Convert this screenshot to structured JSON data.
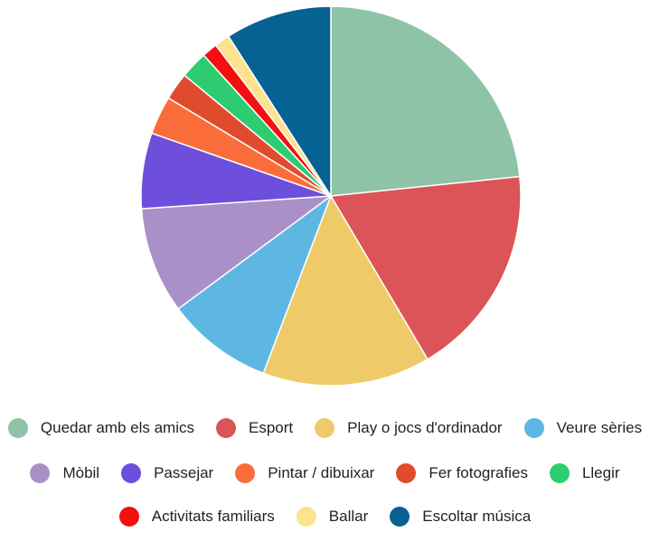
{
  "chart_data": {
    "type": "pie",
    "title": "",
    "slices": [
      {
        "label": "Quedar amb els amics",
        "value": 25.0,
        "color": "#8fc3a8"
      },
      {
        "label": "Esport",
        "value": 19.4,
        "color": "#dc5457"
      },
      {
        "label": "Play o jocs d'ordinador",
        "value": 15.3,
        "color": "#eecb68"
      },
      {
        "label": "Veure sèries",
        "value": 9.7,
        "color": "#5eb6e2"
      },
      {
        "label": "Mòbil",
        "value": 9.7,
        "color": "#a991c8"
      },
      {
        "label": "Passejar",
        "value": 6.9,
        "color": "#6d4fdc"
      },
      {
        "label": "Pintar / dibuixar",
        "value": 3.5,
        "color": "#fa6d3a"
      },
      {
        "label": "Fer fotografies",
        "value": 2.5,
        "color": "#e14b2d"
      },
      {
        "label": "Llegir",
        "value": 2.5,
        "color": "#2ecc71"
      },
      {
        "label": "Activitats familiars",
        "value": 1.4,
        "color": "#f41010"
      },
      {
        "label": "Ballar",
        "value": 1.4,
        "color": "#fde28f"
      },
      {
        "label": "Escoltar música",
        "value": 9.7,
        "color": "#066293"
      }
    ],
    "legend_position": "bottom"
  }
}
